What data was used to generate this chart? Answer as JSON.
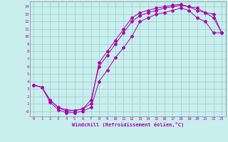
{
  "xlabel": "Windchill (Refroidissement éolien,°C)",
  "bg_color": "#c8eeee",
  "line_color": "#aa00aa",
  "grid_color": "#99cccc",
  "xlim": [
    -0.5,
    23.5
  ],
  "ylim": [
    -0.7,
    14.7
  ],
  "xticks": [
    0,
    1,
    2,
    3,
    4,
    5,
    6,
    7,
    8,
    9,
    10,
    11,
    12,
    13,
    14,
    15,
    16,
    17,
    18,
    19,
    20,
    21,
    22,
    23
  ],
  "yticks": [
    0,
    1,
    2,
    3,
    4,
    5,
    6,
    7,
    8,
    9,
    10,
    11,
    12,
    13,
    14
  ],
  "line1_x": [
    0,
    1,
    2,
    3,
    4,
    5,
    6,
    7,
    8,
    9,
    10,
    11,
    12,
    13,
    14,
    15,
    16,
    17,
    18,
    19,
    20,
    21,
    22,
    23
  ],
  "line1_y": [
    3.5,
    3.2,
    1.5,
    0.5,
    0.2,
    0.1,
    0.3,
    1.0,
    6.5,
    8.0,
    9.5,
    11.0,
    12.5,
    13.2,
    13.5,
    13.8,
    14.0,
    14.2,
    14.3,
    14.0,
    13.5,
    13.2,
    13.0,
    10.5
  ],
  "line2_x": [
    0,
    1,
    2,
    3,
    4,
    5,
    6,
    7,
    8,
    9,
    10,
    11,
    12,
    13,
    14,
    15,
    16,
    17,
    18,
    19,
    20,
    21,
    22,
    23
  ],
  "line2_y": [
    3.5,
    3.2,
    1.2,
    0.2,
    -0.2,
    -0.2,
    0.0,
    0.5,
    4.0,
    5.5,
    7.2,
    8.5,
    10.0,
    12.0,
    12.5,
    13.0,
    13.2,
    13.5,
    13.8,
    13.5,
    12.5,
    12.0,
    10.5,
    10.5
  ],
  "line3_x": [
    0,
    1,
    2,
    3,
    4,
    5,
    6,
    7,
    8,
    9,
    10,
    11,
    12,
    13,
    14,
    15,
    16,
    17,
    18,
    19,
    20,
    21,
    22,
    23
  ],
  "line3_y": [
    3.5,
    3.2,
    1.5,
    0.5,
    0.0,
    0.1,
    0.3,
    1.5,
    6.0,
    7.5,
    9.0,
    10.5,
    12.0,
    12.8,
    13.2,
    13.5,
    13.8,
    14.0,
    14.2,
    14.0,
    13.8,
    13.2,
    12.5,
    10.5
  ]
}
